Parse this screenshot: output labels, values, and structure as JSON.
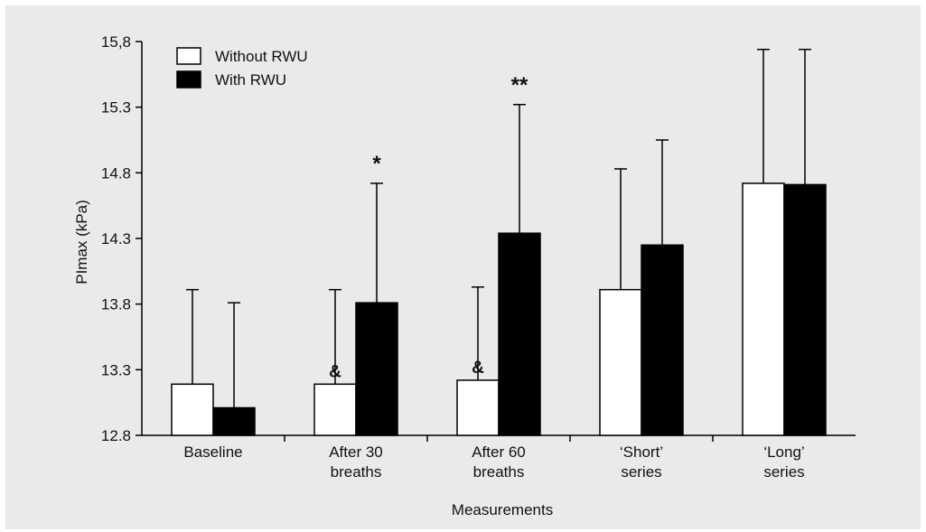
{
  "chart_data": {
    "type": "bar",
    "xlabel": "Measurements",
    "ylabel": "PImax (kPa)",
    "ylim": [
      12.8,
      15.8
    ],
    "ytick_labels": [
      "12.8",
      "13.3",
      "13.8",
      "14.3",
      "14.8",
      "15.3",
      "15,8"
    ],
    "ytick_values": [
      12.8,
      13.3,
      13.8,
      14.3,
      14.8,
      15.3,
      15.8
    ],
    "categories": [
      [
        "Baseline"
      ],
      [
        "After 30",
        "breaths"
      ],
      [
        "After 60",
        "breaths"
      ],
      [
        "‘Short’",
        "series"
      ],
      [
        "‘Long’",
        "series"
      ]
    ],
    "series": [
      {
        "name": "Without RWU",
        "color": "#ffffff",
        "values": [
          13.19,
          13.19,
          13.22,
          13.91,
          14.72
        ],
        "error_upper": [
          13.91,
          13.91,
          13.93,
          14.83,
          15.74
        ],
        "annotations": [
          "",
          "&",
          "&",
          "",
          ""
        ]
      },
      {
        "name": "With RWU",
        "color": "#000000",
        "values": [
          13.01,
          13.81,
          14.34,
          14.25,
          14.71
        ],
        "error_upper": [
          13.81,
          14.72,
          15.32,
          15.05,
          15.74
        ],
        "annotations": [
          "",
          "*",
          "**",
          "",
          ""
        ]
      }
    ],
    "legend_position": "top-left",
    "grid": false
  }
}
